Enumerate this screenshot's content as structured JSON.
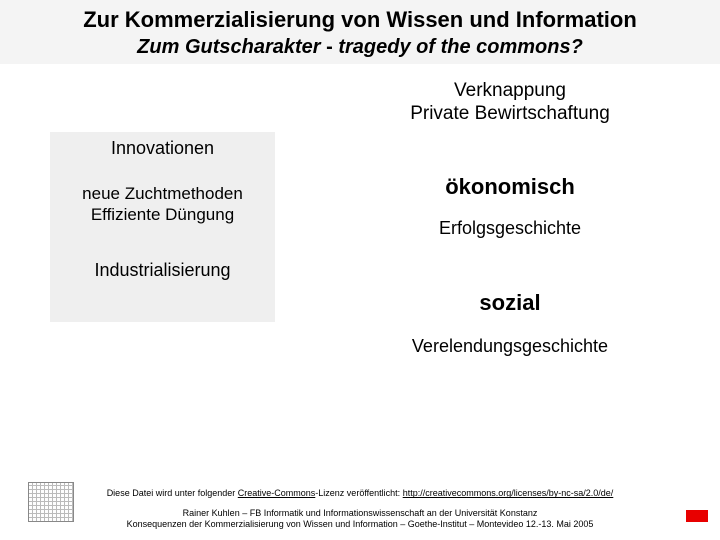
{
  "colors": {
    "slide_bg": "#ffffff",
    "header_bg": "#f4f4f4",
    "left_box_bg": "#efefef",
    "text": "#000000",
    "accent_red": "#e80000",
    "icon_border": "#888888",
    "icon_grid": "#bbbbbb"
  },
  "typography": {
    "title_fontsize": 22,
    "subtitle_fontsize": 20,
    "body_fontsize": 18,
    "emph_fontsize": 22,
    "footer_fontsize": 9,
    "title_weight": "bold",
    "subtitle_style": "italic"
  },
  "title": {
    "line1": "Zur Kommerzialisierung von Wissen und Information",
    "line2_prefix": "Zum Gutscharakter",
    "line2_dash": " - ",
    "line2_suffix": "tragedy of the commons?"
  },
  "right_top": {
    "l1": "Verknappung",
    "l2": "Private Bewirtschaftung"
  },
  "left_box": {
    "heading": "Innovationen",
    "group": {
      "l1": "neue Zuchtmethoden",
      "l2": "Effiziente Düngung"
    },
    "bottom": "Industrialisierung"
  },
  "right_col": {
    "okon": "ökonomisch",
    "erfolg": "Erfolgsgeschichte",
    "sozial": "sozial",
    "verel": "Verelendungsgeschichte"
  },
  "footer": {
    "cc_pre": "Diese Datei wird unter folgender ",
    "cc_link1": "Creative-Commons",
    "cc_mid": "-Lizenz veröffentlicht: ",
    "cc_link2": "http://creativecommons.org/licenses/by-nc-sa/2.0/de/",
    "attr1": "Rainer Kuhlen – FB Informatik und Informationswissenschaft an der Universität Konstanz",
    "attr2": "Konsequenzen der Kommerzialisierung von Wissen und Information – Goethe-Institut – Montevideo 12.-13. Mai 2005"
  }
}
